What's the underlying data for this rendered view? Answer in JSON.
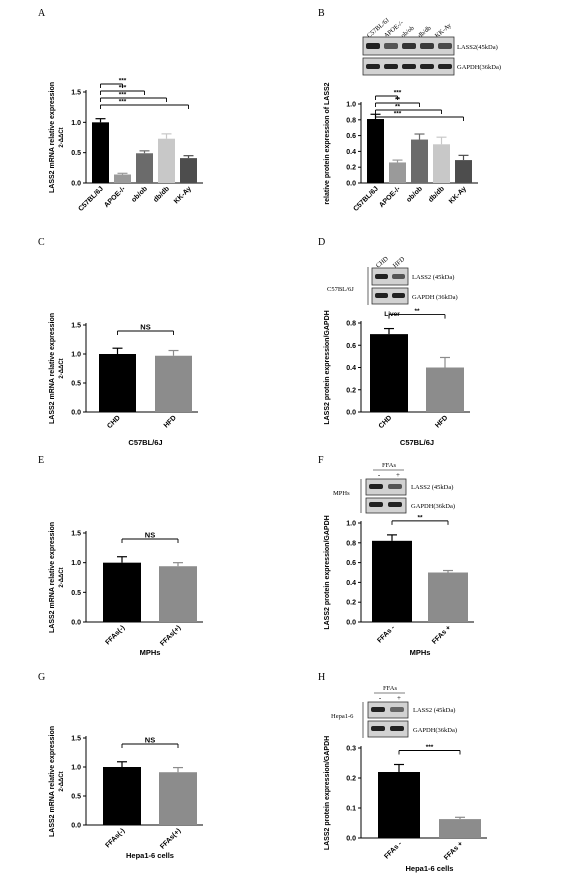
{
  "panels": {
    "A": {
      "letter": "A"
    },
    "B": {
      "letter": "B",
      "lanes": [
        "C57BL/6J",
        "APOE-/-",
        "ob/ob",
        "db/db",
        "KK-Ay"
      ],
      "blot_labels": [
        "LASS2(45kDa)",
        "GAPDH(36kDa)"
      ]
    },
    "C": {
      "letter": "C"
    },
    "D": {
      "letter": "D",
      "lanes": [
        "CHD",
        "HFD"
      ],
      "blot_labels": [
        "LASS2 (45kDa)",
        "GAPDH (36kDa)"
      ],
      "group": "C57BL/6J",
      "tissue": "Liver"
    },
    "E": {
      "letter": "E"
    },
    "F": {
      "letter": "F",
      "treatment": "FFAs",
      "lanes": [
        "-",
        "+"
      ],
      "blot_labels": [
        "LASS2 (45kDa)",
        "GAPDH(36kDa)"
      ],
      "group": "MPHs"
    },
    "G": {
      "letter": "G"
    },
    "H": {
      "letter": "H",
      "treatment": "FFAs",
      "lanes": [
        "-",
        "+"
      ],
      "blot_labels": [
        "LASS2 (45kDa)",
        "GAPDH(36kDa)"
      ],
      "group": "Hepa1-6"
    }
  },
  "chart_data": [
    {
      "id": "A",
      "type": "bar",
      "ylabel": "LASS2 mRNA relative expression",
      "ylabel2": "2-ΔΔCt",
      "ylim": [
        0,
        1.5
      ],
      "yticks": [
        "0.0",
        "0.5",
        "1.0",
        "1.5"
      ],
      "categories": [
        "C57BL/6J",
        "APOE-/-",
        "ob/ob",
        "db/db",
        "KK-Ay"
      ],
      "values": [
        1.0,
        0.14,
        0.49,
        0.73,
        0.41
      ],
      "errors": [
        0.06,
        0.02,
        0.04,
        0.08,
        0.04
      ],
      "colors": [
        "#000000",
        "#9a9a9a",
        "#6b6b6b",
        "#c8c8c8",
        "#4d4d4d"
      ],
      "xlabel": "",
      "significance": [
        {
          "pair": [
            0,
            1
          ],
          "label": "***"
        },
        {
          "pair": [
            0,
            2
          ],
          "label": "***"
        },
        {
          "pair": [
            0,
            3
          ],
          "label": "***"
        },
        {
          "pair": [
            0,
            4
          ],
          "label": "***"
        }
      ]
    },
    {
      "id": "B",
      "type": "bar",
      "ylabel": "relative protein expression of LASS2",
      "ylabel2": "",
      "ylim": [
        0,
        1.0
      ],
      "yticks": [
        "0.0",
        "0.2",
        "0.4",
        "0.6",
        "0.8",
        "1.0"
      ],
      "categories": [
        "C57BL/6J",
        "APOE-/-",
        "ob/ob",
        "db/db",
        "KK-Ay"
      ],
      "values": [
        0.81,
        0.26,
        0.55,
        0.49,
        0.29
      ],
      "errors": [
        0.06,
        0.03,
        0.07,
        0.09,
        0.06
      ],
      "colors": [
        "#000000",
        "#9a9a9a",
        "#6b6b6b",
        "#c8c8c8",
        "#4d4d4d"
      ],
      "xlabel": "",
      "significance": [
        {
          "pair": [
            0,
            1
          ],
          "label": "***"
        },
        {
          "pair": [
            0,
            2
          ],
          "label": "**"
        },
        {
          "pair": [
            0,
            3
          ],
          "label": "**"
        },
        {
          "pair": [
            0,
            4
          ],
          "label": "***"
        }
      ]
    },
    {
      "id": "C",
      "type": "bar",
      "ylabel": "LASS2 mRNA relative expression",
      "ylabel2": "2-ΔΔCt",
      "ylim": [
        0,
        1.5
      ],
      "yticks": [
        "0.0",
        "0.5",
        "1.0",
        "1.5"
      ],
      "categories": [
        "CHD",
        "HFD"
      ],
      "values": [
        1.0,
        0.97
      ],
      "errors": [
        0.1,
        0.09
      ],
      "colors": [
        "#000000",
        "#8c8c8c"
      ],
      "xlabel": "C57BL/6J",
      "significance": [
        {
          "pair": [
            0,
            1
          ],
          "label": "NS"
        }
      ]
    },
    {
      "id": "D",
      "type": "bar",
      "ylabel": "LASS2 protein expression/GAPDH",
      "ylabel2": "",
      "ylim": [
        0,
        0.8
      ],
      "yticks": [
        "0.0",
        "0.2",
        "0.4",
        "0.6",
        "0.8"
      ],
      "categories": [
        "CHD",
        "HFD"
      ],
      "values": [
        0.7,
        0.4
      ],
      "errors": [
        0.05,
        0.09
      ],
      "colors": [
        "#000000",
        "#8c8c8c"
      ],
      "xlabel": "C57BL/6J",
      "significance": [
        {
          "pair": [
            0,
            1
          ],
          "label": "**"
        }
      ]
    },
    {
      "id": "E",
      "type": "bar",
      "ylabel": "LASS2 mRNA relative expression",
      "ylabel2": "2-ΔΔCt",
      "ylim": [
        0,
        1.5
      ],
      "yticks": [
        "0.0",
        "0.5",
        "1.0",
        "1.5"
      ],
      "categories": [
        "FFAs(-)",
        "FFAs(+)"
      ],
      "values": [
        1.0,
        0.94
      ],
      "errors": [
        0.1,
        0.06
      ],
      "colors": [
        "#000000",
        "#8c8c8c"
      ],
      "xlabel": "MPHs",
      "significance": [
        {
          "pair": [
            0,
            1
          ],
          "label": "NS"
        }
      ]
    },
    {
      "id": "F",
      "type": "bar",
      "ylabel": "LASS2 protein expression/GAPDH",
      "ylabel2": "",
      "ylim": [
        0,
        1.0
      ],
      "yticks": [
        "0.0",
        "0.2",
        "0.4",
        "0.6",
        "0.8",
        "1.0"
      ],
      "categories": [
        "FFAs -",
        "FFAs +"
      ],
      "values": [
        0.82,
        0.5
      ],
      "errors": [
        0.06,
        0.02
      ],
      "colors": [
        "#000000",
        "#8c8c8c"
      ],
      "xlabel": "MPHs",
      "significance": [
        {
          "pair": [
            0,
            1
          ],
          "label": "**"
        }
      ]
    },
    {
      "id": "G",
      "type": "bar",
      "ylabel": "LASS2 mRNA relative expression",
      "ylabel2": "2-ΔΔCt",
      "ylim": [
        0,
        1.5
      ],
      "yticks": [
        "0.0",
        "0.5",
        "1.0",
        "1.5"
      ],
      "categories": [
        "FFAs(-)",
        "FFAs(+)"
      ],
      "values": [
        1.0,
        0.91
      ],
      "errors": [
        0.09,
        0.08
      ],
      "colors": [
        "#000000",
        "#8c8c8c"
      ],
      "xlabel": "Hepa1-6 cells",
      "significance": [
        {
          "pair": [
            0,
            1
          ],
          "label": "NS"
        }
      ]
    },
    {
      "id": "H",
      "type": "bar",
      "ylabel": "LASS2 protein expression/GAPDH",
      "ylabel2": "",
      "ylim": [
        0,
        0.3
      ],
      "yticks": [
        "0.0",
        "0.1",
        "0.2",
        "0.3"
      ],
      "categories": [
        "FFAs -",
        "FFAs +"
      ],
      "values": [
        0.22,
        0.063
      ],
      "errors": [
        0.025,
        0.006
      ],
      "colors": [
        "#000000",
        "#8c8c8c"
      ],
      "xlabel": "Hepa1-6 cells",
      "significance": [
        {
          "pair": [
            0,
            1
          ],
          "label": "***"
        }
      ]
    }
  ]
}
